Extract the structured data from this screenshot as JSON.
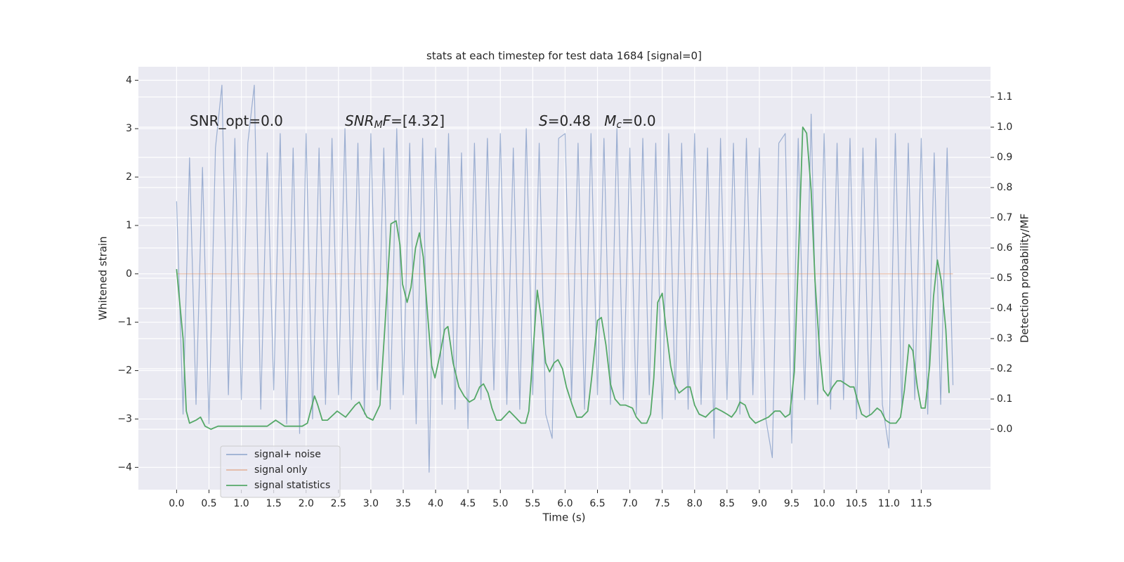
{
  "chart_data": {
    "type": "line",
    "title": "stats at each timestep for test data 1684 [signal=0]",
    "xlabel": "Time (s)",
    "ylabel": "Whitened strain",
    "y2label": "Detection probability/MF",
    "xlim": [
      -0.59,
      12.57
    ],
    "ylim": [
      -4.46,
      4.28
    ],
    "y2lim": [
      -0.2,
      1.2
    ],
    "xticks": [
      {
        "value": 0,
        "label": "0.0"
      },
      0.5,
      {
        "value": 1,
        "label": "1.0"
      },
      1.5,
      {
        "value": 2,
        "label": "2.0"
      },
      2.5,
      {
        "value": 3,
        "label": "3.0"
      },
      3.5,
      {
        "value": 4,
        "label": "4.0"
      },
      4.5,
      {
        "value": 5,
        "label": "5.0"
      },
      5.5,
      {
        "value": 6,
        "label": "6.0"
      },
      6.5,
      {
        "value": 7,
        "label": "7.0"
      },
      7.5,
      {
        "value": 8,
        "label": "8.0"
      },
      8.5,
      {
        "value": 9,
        "label": "9.0"
      },
      9.5,
      {
        "value": 10,
        "label": "10.0"
      },
      10.5,
      {
        "value": 11,
        "label": "11.0"
      },
      11.5
    ],
    "yticks": [
      {
        "value": -4,
        "label": "−4"
      },
      {
        "value": -3,
        "label": "−3"
      },
      {
        "value": -2,
        "label": "−2"
      },
      {
        "value": -1,
        "label": "−1"
      },
      0,
      1,
      2,
      3,
      4
    ],
    "y2ticks": [
      {
        "value": 0,
        "label": "0.0"
      },
      0.1,
      0.2,
      0.3,
      0.4,
      0.5,
      0.6,
      0.7,
      0.8,
      0.9,
      {
        "value": 1,
        "label": "1.0"
      },
      1.1
    ],
    "grid": true,
    "legend": "lower left",
    "annotations": [
      [
        {
          "text": "SNR_opt=0.0",
          "style": "normal"
        }
      ],
      [
        {
          "text": "SNR",
          "style": "italic"
        },
        {
          "text": "M",
          "style": "sub"
        },
        {
          "text": "F",
          "style": "italic"
        },
        {
          "text": "=[4.32]",
          "style": "normal"
        }
      ],
      [
        {
          "text": "S",
          "style": "italic"
        },
        {
          "text": "=0.48   ",
          "style": "normal"
        },
        {
          "text": "M",
          "style": "italic"
        },
        {
          "text": "c",
          "style": "sub"
        },
        {
          "text": "=0.0",
          "style": "normal"
        }
      ]
    ],
    "series": [
      {
        "name": "signal+ noise",
        "color": "#4c72b0",
        "alpha": 0.5,
        "axis": "y",
        "x": [
          0,
          0.1,
          0.2,
          0.3,
          0.4,
          0.5,
          0.6,
          0.7,
          0.8,
          0.9,
          1,
          1.1,
          1.2,
          1.3,
          1.4,
          1.5,
          1.6,
          1.7,
          1.8,
          1.9,
          2,
          2.1,
          2.2,
          2.3,
          2.4,
          2.5,
          2.6,
          2.7,
          2.8,
          2.9,
          3,
          3.1,
          3.2,
          3.3,
          3.4,
          3.5,
          3.6,
          3.7,
          3.8,
          3.9,
          4,
          4.1,
          4.2,
          4.3,
          4.4,
          4.5,
          4.6,
          4.7,
          4.8,
          4.9,
          5,
          5.1,
          5.2,
          5.3,
          5.4,
          5.5,
          5.6,
          5.7,
          5.8,
          5.9,
          6,
          6.1,
          6.2,
          6.3,
          6.4,
          6.5,
          6.6,
          6.7,
          6.8,
          6.9,
          7,
          7.1,
          7.2,
          7.3,
          7.4,
          7.5,
          7.6,
          7.7,
          7.8,
          7.9,
          8,
          8.1,
          8.2,
          8.3,
          8.4,
          8.5,
          8.6,
          8.7,
          8.8,
          8.9,
          9,
          9.1,
          9.2,
          9.3,
          9.4,
          9.5,
          9.6,
          9.7,
          9.8,
          9.9,
          10,
          10.1,
          10.2,
          10.3,
          10.4,
          10.5,
          10.6,
          10.7,
          10.8,
          10.9,
          11,
          11.1,
          11.2,
          11.3,
          11.4,
          11.5,
          11.6,
          11.7,
          11.8,
          11.9,
          11.99
        ],
        "values": [
          1.5,
          -2.9,
          2.4,
          -2.7,
          2.2,
          -3.1,
          2.6,
          3.9,
          -2.5,
          2.8,
          -2.6,
          2.7,
          3.9,
          -2.8,
          2.5,
          -2.4,
          2.9,
          -3.1,
          2.6,
          -3.3,
          2.9,
          -3.0,
          2.6,
          -2.7,
          2.8,
          -2.5,
          3.0,
          -2.6,
          2.7,
          -2.9,
          2.9,
          -2.4,
          2.6,
          -2.8,
          3.0,
          -2.5,
          2.7,
          -3.1,
          2.8,
          -4.1,
          2.6,
          -2.7,
          2.9,
          -2.8,
          2.5,
          -3.2,
          2.7,
          -2.6,
          2.8,
          -2.4,
          2.9,
          -2.7,
          2.6,
          -2.8,
          3.0,
          -2.5,
          2.7,
          -2.9,
          -3.4,
          2.8,
          2.9,
          -2.6,
          2.7,
          -2.8,
          2.9,
          -2.5,
          2.8,
          -2.7,
          3.0,
          -2.6,
          2.6,
          -2.9,
          2.8,
          -2.5,
          2.7,
          -3.0,
          2.9,
          -2.6,
          2.7,
          -2.8,
          2.9,
          -2.7,
          2.6,
          -3.4,
          2.8,
          -2.6,
          2.7,
          -2.9,
          2.8,
          -2.5,
          2.6,
          -3.0,
          -3.8,
          2.7,
          2.9,
          -3.5,
          2.8,
          -2.6,
          3.3,
          -2.7,
          2.9,
          -2.8,
          2.7,
          -2.6,
          2.8,
          -3.0,
          2.6,
          -2.9,
          2.8,
          -2.7,
          -3.6,
          2.9,
          -2.8,
          2.7,
          -2.6,
          2.8,
          -2.9,
          2.5,
          -2.7,
          2.6,
          -2.3
        ]
      },
      {
        "name": "signal only",
        "color": "#dd8452",
        "alpha": 0.5,
        "axis": "y",
        "x": [
          0,
          11.99
        ],
        "values": [
          0,
          0
        ]
      },
      {
        "name": "signal statistics",
        "color": "#55a868",
        "alpha": 1,
        "axis": "y2",
        "x": [
          0,
          0.1,
          0.15,
          0.2,
          0.3,
          0.37,
          0.44,
          0.53,
          0.64,
          0.75,
          0.97,
          1.18,
          1.4,
          1.53,
          1.67,
          1.83,
          1.94,
          2.02,
          2.13,
          2.18,
          2.25,
          2.33,
          2.48,
          2.61,
          2.76,
          2.82,
          2.94,
          3.03,
          3.14,
          3.22,
          3.31,
          3.39,
          3.45,
          3.49,
          3.56,
          3.62,
          3.69,
          3.75,
          3.81,
          3.88,
          3.94,
          3.99,
          4.07,
          4.14,
          4.19,
          4.27,
          4.36,
          4.44,
          4.52,
          4.6,
          4.68,
          4.74,
          4.81,
          4.87,
          4.94,
          5.01,
          5.14,
          5.23,
          5.32,
          5.39,
          5.44,
          5.5,
          5.57,
          5.63,
          5.7,
          5.76,
          5.83,
          5.89,
          5.96,
          6.02,
          6.11,
          6.18,
          6.26,
          6.35,
          6.41,
          6.5,
          6.56,
          6.63,
          6.7,
          6.77,
          6.85,
          6.93,
          7.04,
          7.1,
          7.18,
          7.26,
          7.32,
          7.37,
          7.43,
          7.5,
          7.56,
          7.63,
          7.69,
          7.76,
          7.82,
          7.88,
          7.93,
          8,
          8.07,
          8.17,
          8.26,
          8.33,
          8.42,
          8.5,
          8.57,
          8.64,
          8.7,
          8.78,
          8.85,
          8.94,
          9.04,
          9.14,
          9.24,
          9.32,
          9.4,
          9.47,
          9.54,
          9.61,
          9.67,
          9.73,
          9.8,
          9.86,
          9.93,
          9.99,
          10.06,
          10.13,
          10.2,
          10.26,
          10.33,
          10.4,
          10.46,
          10.51,
          10.58,
          10.65,
          10.73,
          10.82,
          10.88,
          10.95,
          11.02,
          11.11,
          11.18,
          11.24,
          11.31,
          11.37,
          11.44,
          11.5,
          11.56,
          11.63,
          11.69,
          11.75,
          11.81,
          11.88,
          11.93
        ],
        "values": [
          0.53,
          0.3,
          0.06,
          0.02,
          0.03,
          0.04,
          0.01,
          0.0,
          0.01,
          0.01,
          0.01,
          0.01,
          0.01,
          0.03,
          0.01,
          0.01,
          0.01,
          0.02,
          0.11,
          0.08,
          0.03,
          0.03,
          0.06,
          0.04,
          0.08,
          0.09,
          0.04,
          0.03,
          0.08,
          0.35,
          0.68,
          0.69,
          0.61,
          0.48,
          0.42,
          0.47,
          0.6,
          0.65,
          0.57,
          0.37,
          0.21,
          0.17,
          0.25,
          0.33,
          0.34,
          0.22,
          0.14,
          0.11,
          0.09,
          0.1,
          0.14,
          0.15,
          0.12,
          0.07,
          0.03,
          0.03,
          0.06,
          0.04,
          0.02,
          0.02,
          0.06,
          0.24,
          0.46,
          0.37,
          0.22,
          0.19,
          0.22,
          0.23,
          0.2,
          0.14,
          0.08,
          0.04,
          0.04,
          0.06,
          0.17,
          0.36,
          0.37,
          0.28,
          0.15,
          0.1,
          0.08,
          0.08,
          0.07,
          0.04,
          0.02,
          0.02,
          0.05,
          0.17,
          0.42,
          0.45,
          0.33,
          0.21,
          0.15,
          0.12,
          0.13,
          0.14,
          0.14,
          0.08,
          0.05,
          0.04,
          0.06,
          0.07,
          0.06,
          0.05,
          0.04,
          0.06,
          0.09,
          0.08,
          0.04,
          0.02,
          0.03,
          0.04,
          0.06,
          0.06,
          0.04,
          0.05,
          0.19,
          0.61,
          1.0,
          0.98,
          0.79,
          0.49,
          0.26,
          0.13,
          0.11,
          0.14,
          0.16,
          0.16,
          0.15,
          0.14,
          0.14,
          0.1,
          0.05,
          0.04,
          0.05,
          0.07,
          0.06,
          0.03,
          0.02,
          0.02,
          0.04,
          0.13,
          0.28,
          0.26,
          0.14,
          0.07,
          0.07,
          0.21,
          0.44,
          0.56,
          0.49,
          0.33,
          0.12
        ]
      }
    ]
  }
}
